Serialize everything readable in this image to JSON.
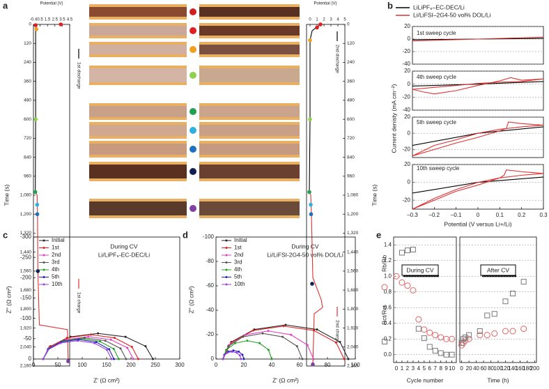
{
  "chart_data": [
    {
      "type": "line",
      "label": "a",
      "xlabel": "Potential (V)",
      "ylabel": "Time (s)",
      "y_reversed": true,
      "xaxis_position": "top",
      "yaxis_position": "left",
      "xlim": [
        -0.4,
        4.5
      ],
      "xticks": [
        -0.4,
        0.5,
        1.5,
        2.5,
        3.5,
        4.5
      ],
      "ylim": [
        0,
        2160
      ],
      "yticks": [
        0,
        120,
        240,
        360,
        480,
        600,
        720,
        840,
        960,
        {
          "value": 1080,
          "label": "1,080"
        },
        {
          "value": 1200,
          "label": "1,200"
        },
        {
          "value": 1320,
          "label": "1,320"
        },
        {
          "value": 1440,
          "label": "1,440"
        },
        {
          "value": 1560,
          "label": "1,560"
        },
        {
          "value": 1680,
          "label": "1,680"
        },
        {
          "value": 1800,
          "label": "1,800"
        },
        {
          "value": 1920,
          "label": "1,920"
        },
        {
          "value": 2040,
          "label": "2,040"
        },
        {
          "value": 2160,
          "label": "2,160"
        }
      ],
      "series": [
        {
          "name": "1st discharge",
          "color": "#000000",
          "x": [
            0.05,
            -0.1,
            -0.1,
            -0.15
          ],
          "values": [
            0,
            30,
            600,
            1060
          ]
        },
        {
          "name": "1st charge",
          "color": "#e03030",
          "x": [
            -0.15,
            0.1,
            0.15,
            0.2,
            0.4,
            4.2,
            4.3
          ],
          "values": [
            1060,
            1080,
            1200,
            1560,
            1900,
            1930,
            2130
          ]
        },
        {
          "line": false,
          "marker": "dot-large",
          "colors": [
            "#e02020",
            "#e02020",
            "#f0a020",
            "#90d050",
            "#20a050",
            "#30b0e0",
            "#2070c0",
            "#102050",
            "#8040a0"
          ],
          "x": [
            3.3,
            -0.1,
            0,
            -0.1,
            -0.15,
            0.1,
            0.12,
            0.2,
            4.3
          ],
          "values": [
            0,
            5,
            30,
            600,
            1060,
            1140,
            1200,
            1560,
            2130
          ]
        }
      ]
    },
    {
      "type": "line",
      "xlabel": "Potential (V)",
      "ylabel": "Time (s)",
      "y_reversed": true,
      "xaxis_position": "top",
      "yaxis_position": "right",
      "xlim": [
        -0.5,
        5
      ],
      "xticks": [
        0,
        1,
        2,
        3,
        4,
        5
      ],
      "ylim": [
        0,
        2160
      ],
      "yticks": [
        0,
        120,
        240,
        360,
        480,
        600,
        720,
        840,
        960,
        {
          "value": 1080,
          "label": "1,080"
        },
        {
          "value": 1200,
          "label": "1,200"
        },
        {
          "value": 1320,
          "label": "1,320"
        },
        {
          "value": 1440,
          "label": "1,440"
        },
        {
          "value": 1560,
          "label": "1,560"
        },
        {
          "value": 1680,
          "label": "1,680"
        },
        {
          "value": 1800,
          "label": "1,800"
        },
        {
          "value": 1920,
          "label": "1,920"
        },
        {
          "value": 2040,
          "label": "2,040"
        },
        {
          "value": 2160,
          "label": "2,160"
        }
      ],
      "series": [
        {
          "name": "2nd discharge",
          "color": "#000000",
          "x": [
            1.5,
            0.3,
            0,
            0,
            -0.1
          ],
          "values": [
            0,
            40,
            100,
            600,
            1060
          ]
        },
        {
          "name": "2nd charge",
          "color": "#e03030",
          "x": [
            -0.1,
            0.1,
            0.2,
            0.4,
            1.6,
            1.8,
            0.6,
            0.5,
            0.4
          ],
          "values": [
            1060,
            1080,
            1200,
            1600,
            1740,
            1790,
            1830,
            2000,
            2150
          ]
        },
        {
          "line": false,
          "marker": "dot-large",
          "colors": [
            "#e02020",
            "#e02020",
            "#f0a020",
            "#90d050",
            "#20a050",
            "#30b0e0",
            "#2070c0",
            "#102050",
            "#8040a0"
          ],
          "x": [
            1.5,
            1,
            0,
            0,
            -0.1,
            0.1,
            0.15,
            0.3,
            0.4
          ],
          "values": [
            0,
            20,
            100,
            600,
            1060,
            1140,
            1200,
            1640,
            2150
          ]
        }
      ]
    },
    {
      "type": "line",
      "label": "b",
      "title": "1st sweep cycle",
      "ylabel": "Current denisty (mA cm⁻²)",
      "grid": true,
      "xlim": [
        -0.3,
        0.3
      ],
      "ylim": [
        -40,
        20
      ],
      "yticks": [
        -40,
        -20,
        0,
        20
      ],
      "series": [
        {
          "name": "LiLiPF₆–EC-DEC/Li",
          "color": "#000000",
          "x": [
            -0.3,
            0,
            0.3
          ],
          "values": [
            -1,
            0,
            1
          ]
        },
        {
          "name": "Li/LiFSI–2G4-50 vol% DOL/Li",
          "color": "#e03030",
          "x": [
            -0.3,
            0,
            0.3
          ],
          "values": [
            -3,
            0,
            3
          ]
        }
      ]
    },
    {
      "type": "line",
      "title": "4th sweep cycle",
      "grid": true,
      "xlim": [
        -0.3,
        0.3
      ],
      "ylim": [
        -40,
        20
      ],
      "yticks": [
        -40,
        -20,
        0,
        20
      ],
      "series": [
        {
          "color": "#000000",
          "x": [
            -0.3,
            0,
            0.3
          ],
          "values": [
            -3,
            0,
            4
          ]
        },
        {
          "color": "#e03030",
          "x": [
            -0.3,
            -0.25,
            -0.2,
            -0.1,
            0,
            0.1,
            0.15,
            0.2,
            0.3,
            0.2,
            0.1,
            0,
            -0.1,
            -0.2,
            -0.3
          ],
          "values": [
            -8,
            -12,
            -15,
            -10,
            -2,
            5,
            10,
            6,
            8,
            4,
            3,
            1,
            -2,
            -5,
            -8
          ]
        }
      ]
    },
    {
      "type": "line",
      "title": "5th sweep cycle",
      "grid": true,
      "xlim": [
        -0.3,
        0.3
      ],
      "ylim": [
        -30,
        20
      ],
      "yticks": [
        -20,
        0,
        20
      ],
      "series": [
        {
          "color": "#000000",
          "x": [
            -0.3,
            0,
            0.3
          ],
          "values": [
            -15,
            0,
            8
          ]
        },
        {
          "color": "#e03030",
          "x": [
            -0.3,
            -0.2,
            -0.1,
            0,
            0.1,
            0.13,
            0.14,
            0.2,
            0.3,
            0.2,
            0.1,
            0,
            -0.1,
            -0.2,
            -0.3
          ],
          "values": [
            -28,
            -20,
            -12,
            -5,
            3,
            6,
            14,
            12,
            10,
            8,
            5,
            0,
            -8,
            -15,
            -28
          ]
        }
      ]
    },
    {
      "type": "line",
      "title": "10th sweep cycle",
      "xlabel": "Potential (V versus Li+/Li)",
      "grid": true,
      "xlim": [
        -0.3,
        0.3
      ],
      "xticks": [
        {
          "value": -0.3,
          "label": "–0.3"
        },
        {
          "value": -0.2,
          "label": "–0.2"
        },
        {
          "value": -0.1,
          "label": "–0.1"
        },
        0,
        0.1,
        0.2,
        0.3
      ],
      "ylim": [
        -30,
        20
      ],
      "yticks": [
        -20,
        0,
        20
      ],
      "series": [
        {
          "color": "#000000",
          "x": [
            -0.3,
            0,
            0.3
          ],
          "values": [
            -12,
            0,
            6
          ]
        },
        {
          "color": "#e03030",
          "x": [
            -0.3,
            -0.2,
            -0.1,
            0,
            0.1,
            0.12,
            0.13,
            0.2,
            0.3,
            0.2,
            0.1,
            0,
            -0.1,
            -0.2,
            -0.3
          ],
          "values": [
            -30,
            -20,
            -10,
            -3,
            5,
            8,
            14,
            12,
            10,
            8,
            5,
            0,
            -8,
            -18,
            -30
          ]
        }
      ]
    },
    {
      "type": "line",
      "label": "c",
      "title": "During CV",
      "subtitle": "Li/LiPF₆-EC-DEC/Li",
      "xlabel": "Z' (Ω cm²)",
      "ylabel": "Z'' (Ω cm²)",
      "y_reversed": true,
      "xlim": [
        0,
        300
      ],
      "xticks": [
        0,
        50,
        100,
        150,
        200,
        250,
        300
      ],
      "ylim": [
        -300,
        0
      ],
      "yticks": [
        -300,
        -250,
        -200,
        -150,
        -100,
        -50,
        0
      ],
      "series": [
        {
          "name": "Initial",
          "color": "#222222",
          "marker": "dot",
          "x": [
            20,
            35.1,
            76.3,
            132.5,
            188.8,
            229.9,
            245
          ],
          "values": [
            0,
            -31.5,
            -54.6,
            -63,
            -54.6,
            -31.5,
            0
          ]
        },
        {
          "name": "1st",
          "color": "#e02020",
          "marker": "dot",
          "x": [
            20,
            33.1,
            68.8,
            117.5,
            166.3,
            201.9,
            215
          ],
          "values": [
            0,
            -30,
            -52,
            -60,
            -52,
            -30,
            0
          ]
        },
        {
          "name": "2nd",
          "color": "#e040c0",
          "marker": "dot",
          "x": [
            20,
            32.4,
            66.3,
            112.5,
            158.8,
            192.6,
            205
          ],
          "values": [
            0,
            -27.5,
            -47.6,
            -55,
            -47.6,
            -27.5,
            0
          ]
        },
        {
          "name": "3rd",
          "color": "#555555",
          "marker": "dot",
          "x": [
            20,
            31.4,
            62.5,
            105,
            147.5,
            178.6,
            190
          ],
          "values": [
            0,
            -26,
            -45,
            -52,
            -45,
            -26,
            0
          ]
        },
        {
          "name": "4th",
          "color": "#20a020",
          "marker": "dot",
          "x": [
            20,
            30.4,
            58.8,
            97.5,
            136.3,
            164.6,
            175
          ],
          "values": [
            0,
            -25,
            -43.3,
            -50,
            -43.3,
            -25,
            0
          ]
        },
        {
          "name": "5th",
          "color": "#2020c0",
          "marker": "dot",
          "x": [
            20,
            29.7,
            56.3,
            92.5,
            128.8,
            155.3,
            165
          ],
          "values": [
            0,
            -24,
            -41.6,
            -48,
            -41.6,
            -24,
            0
          ]
        },
        {
          "name": "10th",
          "color": "#a040e0",
          "marker": "dot",
          "x": [
            20,
            29.4,
            55,
            90,
            125,
            150.6,
            160
          ],
          "values": [
            0,
            -22.5,
            -39,
            -45,
            -39,
            -22.5,
            0
          ]
        }
      ]
    },
    {
      "type": "line",
      "label": "d",
      "title": "During CV",
      "subtitle": "Li/LiFSI-2G4-50 vol% DOL/Li",
      "xlabel": "Z' (Ω cm²)",
      "ylabel": "Z'' (Ω cm²)",
      "y_reversed": true,
      "xlim": [
        0,
        100
      ],
      "xticks": [
        0,
        20,
        40,
        60,
        80,
        100
      ],
      "ylim": [
        -100,
        0
      ],
      "yticks": [
        -100,
        -80,
        -60,
        -40,
        -20,
        0
      ],
      "series": [
        {
          "name": "Initial",
          "color": "#222222",
          "marker": "dot",
          "x": [
            5,
            11,
            27.5,
            50,
            72.5,
            89,
            95
          ],
          "values": [
            0,
            -14,
            -24.2,
            -28,
            -24.2,
            -14,
            0
          ]
        },
        {
          "name": "1st",
          "color": "#e02020",
          "marker": "dot",
          "x": [
            5,
            10.8,
            26.8,
            48.5,
            70.3,
            86.2,
            92
          ],
          "values": [
            0,
            -13.5,
            -23.4,
            -27,
            -23.4,
            -13.5,
            0
          ]
        },
        {
          "name": "2nd",
          "color": "#e040c0",
          "marker": "dot",
          "x": [
            5,
            9.4,
            21.3,
            37.5,
            53.8,
            65.6,
            70
          ],
          "values": [
            0,
            -11.5,
            -19.9,
            -23,
            -19.9,
            -11.5,
            0
          ]
        },
        {
          "name": "3rd",
          "color": "#555555",
          "marker": "dot",
          "x": [
            5,
            8.8,
            19.3,
            33.5,
            47.8,
            58.2,
            62
          ],
          "values": [
            0,
            -10.5,
            -18.2,
            -21,
            -18.2,
            -10.5,
            0
          ]
        },
        {
          "name": "4th",
          "color": "#20a020",
          "marker": "dot",
          "x": [
            5,
            7.3,
            13.8,
            22.5,
            31.3,
            37.7,
            40
          ],
          "values": [
            0,
            -7.5,
            -13,
            -15,
            -13,
            -7.5,
            0
          ]
        },
        {
          "name": "5th",
          "color": "#2020c0",
          "marker": "dot",
          "x": [
            5,
            6,
            8.8,
            12.5,
            16.3,
            19,
            20
          ],
          "values": [
            0,
            -3.5,
            -6.1,
            -7,
            -6.1,
            -3.5,
            0
          ]
        },
        {
          "name": "10th",
          "color": "#a040e0",
          "marker": "dot",
          "x": [
            5,
            5.9,
            8.3,
            11.5,
            14.8,
            17.1,
            18
          ],
          "values": [
            0,
            -3,
            -5.2,
            -6,
            -5.2,
            -3,
            0
          ]
        }
      ]
    },
    {
      "type": "scatter",
      "label": "e",
      "annotation": "During CV",
      "xlabel": "Cycle number",
      "grid": true,
      "xlim": [
        -0.5,
        10.8
      ],
      "xticks": [
        0,
        1,
        2,
        3,
        4,
        5,
        6,
        7,
        8,
        9,
        10
      ],
      "ylim": [
        -0.1,
        1.5
      ],
      "yticks": [
        {
          "value": 0,
          "label": "0.0"
        },
        0.2,
        0.4,
        0.6,
        0.8,
        {
          "value": 1,
          "label": "1.0"
        },
        1.2,
        1.4
      ],
      "series": [
        {
          "name": "Rb/Rb",
          "color": "#e06060",
          "marker": "circle",
          "line": false,
          "x": [
            0,
            1,
            2,
            3,
            4,
            5,
            6,
            7,
            8,
            9,
            10
          ],
          "values": [
            1.0,
            0.92,
            0.88,
            0.82,
            0.45,
            0.32,
            0.28,
            0.25,
            0.22,
            0.2,
            0.2
          ]
        },
        {
          "name": "Rct/Rct",
          "color": "#777777",
          "marker": "square",
          "line": false,
          "x": [
            1,
            2,
            3,
            4,
            5,
            6,
            7,
            8,
            9,
            10
          ],
          "values": [
            1.3,
            1.33,
            1.34,
            0.33,
            0.21,
            0.1,
            0.05,
            0.02,
            0,
            0
          ]
        }
      ]
    },
    {
      "type": "scatter",
      "annotation": "After CV",
      "xlabel": "Time (h)",
      "xlim": [
        -5,
        205
      ],
      "xticks": [
        0,
        20,
        40,
        60,
        80,
        100,
        120,
        140,
        160,
        180,
        200
      ],
      "ylim": [
        -0.1,
        1.5
      ],
      "series": [
        {
          "color": "#e06060",
          "marker": "circle",
          "line": false,
          "x": [
            0,
            5,
            10,
            20,
            50,
            70,
            90,
            120,
            140,
            170
          ],
          "values": [
            0.12,
            0.15,
            0.18,
            0.2,
            0.25,
            0.25,
            0.27,
            0.3,
            0.3,
            0.33
          ]
        },
        {
          "color": "#777777",
          "marker": "square",
          "line": false,
          "x": [
            0,
            5,
            10,
            20,
            50,
            70,
            90,
            120,
            140,
            170
          ],
          "values": [
            0.15,
            0.2,
            0.22,
            0.25,
            0.3,
            0.5,
            0.52,
            0.68,
            0.78,
            0.93
          ]
        }
      ]
    }
  ]
}
